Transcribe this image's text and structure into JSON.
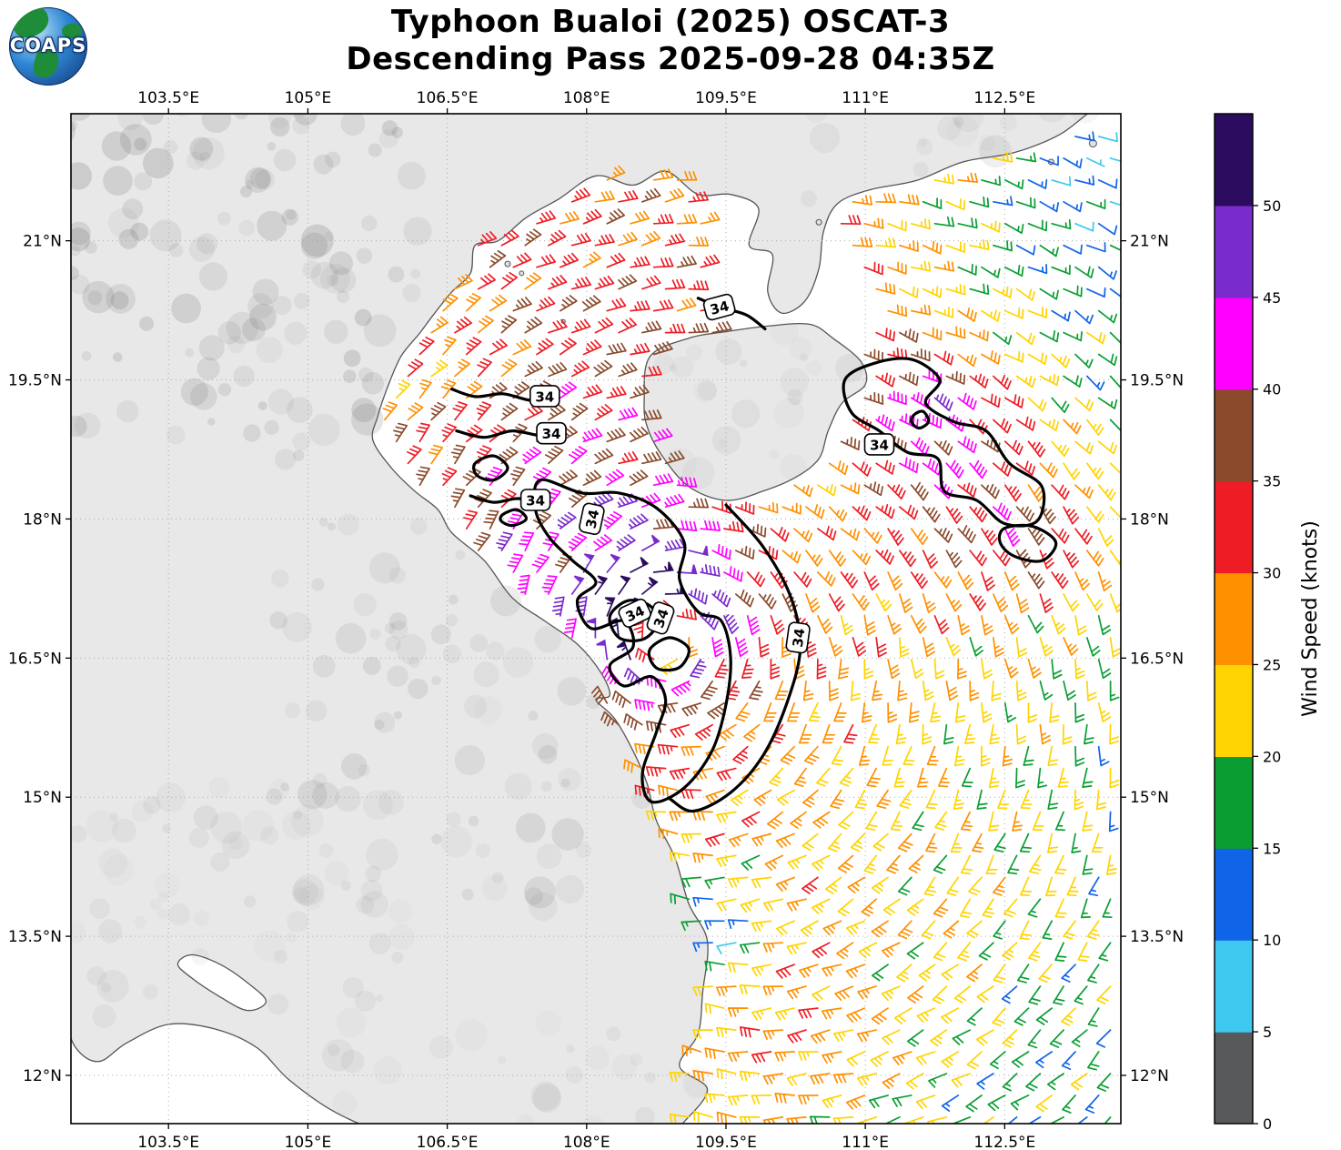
{
  "header": {
    "title_line1": "Typhoon Bualoi (2025) OSCAT-3",
    "title_line2": "Descending Pass 2025-09-28 04:35Z",
    "logo_text": "COAPS"
  },
  "chart_data": {
    "type": "map-windbarbs",
    "title": "Typhoon Bualoi (2025) OSCAT-3",
    "subtitle": "Descending Pass 2025-09-28 04:35Z",
    "x_axis": {
      "range": [
        102.45,
        113.75
      ],
      "ticks": [
        103.5,
        105,
        106.5,
        108,
        109.5,
        111,
        112.5
      ],
      "suffix": "°E"
    },
    "y_axis": {
      "range": [
        11.48,
        22.37
      ],
      "ticks": [
        21,
        19.5,
        18,
        16.5,
        15,
        13.5,
        12
      ],
      "suffix": "°N"
    },
    "colorbar": {
      "label": "Wind Speed (knots)",
      "ticks": [
        0,
        5,
        10,
        15,
        20,
        25,
        30,
        35,
        40,
        45,
        50
      ],
      "vmax": 55,
      "colors": [
        "#58595b",
        "#3fc8f0",
        "#1064e8",
        "#0a9e32",
        "#ffd400",
        "#ff9000",
        "#ee1c24",
        "#8b4a2b",
        "#ff00ff",
        "#7a2bcb",
        "#2c0c5e"
      ]
    },
    "wind_model": {
      "center": [
        108.85,
        16.75
      ],
      "vmax": 52,
      "rmax": 0.45,
      "decay_exp": 0.32,
      "background": [
        -5.5,
        -5.5
      ],
      "anomalies": [
        [
          109.35,
          13.55,
          -14,
          0.4
        ],
        [
          112.0,
          18.55,
          13,
          0.8
        ],
        [
          111.5,
          19.3,
          12,
          0.45
        ],
        [
          112.85,
          17.72,
          12,
          0.4
        ],
        [
          110.15,
          18.25,
          -9,
          0.6
        ],
        [
          113.55,
          21.9,
          -11,
          1.1
        ],
        [
          113.3,
          19.8,
          -5,
          1.3
        ],
        [
          110.3,
          12.2,
          7,
          1.0
        ],
        [
          111.8,
          13.8,
          5,
          1.6
        ],
        [
          106.2,
          19.6,
          -7,
          0.6
        ]
      ]
    },
    "barb_grid": {
      "lon_start": 102.55,
      "dlon": 0.252,
      "cols": 46,
      "lat_start": 11.55,
      "dlat": 0.235,
      "rows": 48,
      "eye_radius": 0.18
    },
    "swath": {
      "gap_polygon": [
        [
          109.35,
          21.45
        ],
        [
          110.2,
          21.5
        ],
        [
          111.05,
          20.5
        ],
        [
          110.95,
          19.5
        ],
        [
          110.45,
          19.05
        ],
        [
          109.9,
          19.35
        ],
        [
          109.5,
          19.9
        ],
        [
          109.25,
          20.8
        ]
      ],
      "southwest_cutoff": {
        "lon": 106.45,
        "lat": 14.2
      }
    },
    "contours": [
      {
        "closed": true,
        "pts": [
          [
            107.5,
            18.42
          ],
          [
            107.95,
            18.28
          ],
          [
            108.35,
            18.28
          ],
          [
            108.75,
            18.12
          ],
          [
            109.05,
            17.75
          ],
          [
            109.0,
            17.35
          ],
          [
            109.2,
            17.0
          ],
          [
            109.45,
            16.9
          ],
          [
            109.55,
            16.5
          ],
          [
            109.5,
            16.0
          ],
          [
            109.35,
            15.5
          ],
          [
            109.05,
            15.1
          ],
          [
            108.7,
            14.95
          ],
          [
            108.6,
            15.25
          ],
          [
            108.75,
            15.7
          ],
          [
            108.85,
            16.05
          ],
          [
            108.7,
            16.3
          ],
          [
            108.4,
            16.2
          ],
          [
            108.25,
            16.42
          ],
          [
            108.5,
            16.62
          ],
          [
            108.4,
            16.9
          ],
          [
            108.05,
            16.82
          ],
          [
            107.9,
            17.12
          ],
          [
            108.1,
            17.32
          ],
          [
            107.85,
            17.55
          ],
          [
            107.6,
            17.8
          ],
          [
            107.45,
            18.1
          ]
        ]
      },
      {
        "closed": false,
        "pts": [
          [
            109.5,
            18.15
          ],
          [
            109.9,
            17.7
          ],
          [
            110.2,
            17.15
          ],
          [
            110.3,
            16.6
          ],
          [
            110.15,
            16.0
          ],
          [
            109.9,
            15.45
          ],
          [
            109.55,
            15.05
          ],
          [
            109.15,
            14.85
          ],
          [
            108.9,
            14.98
          ]
        ]
      },
      {
        "closed": true,
        "pts": [
          [
            108.25,
            16.95
          ],
          [
            108.45,
            17.12
          ],
          [
            108.7,
            17.05
          ],
          [
            108.75,
            16.85
          ],
          [
            108.6,
            16.7
          ],
          [
            108.35,
            16.72
          ]
        ]
      },
      {
        "closed": true,
        "pts": [
          [
            108.7,
            16.62
          ],
          [
            108.9,
            16.72
          ],
          [
            109.1,
            16.6
          ],
          [
            109.0,
            16.4
          ],
          [
            108.78,
            16.38
          ],
          [
            108.68,
            16.5
          ]
        ]
      },
      {
        "closed": false,
        "pts": [
          [
            106.55,
            19.4
          ],
          [
            106.8,
            19.32
          ],
          [
            107.1,
            19.35
          ],
          [
            107.4,
            19.28
          ],
          [
            107.62,
            19.33
          ]
        ]
      },
      {
        "closed": false,
        "pts": [
          [
            106.6,
            18.95
          ],
          [
            106.9,
            18.88
          ],
          [
            107.2,
            18.95
          ],
          [
            107.5,
            18.9
          ],
          [
            107.7,
            18.93
          ]
        ]
      },
      {
        "closed": true,
        "pts": [
          [
            106.8,
            18.6
          ],
          [
            107.0,
            18.68
          ],
          [
            107.15,
            18.55
          ],
          [
            107.0,
            18.42
          ],
          [
            106.82,
            18.47
          ]
        ]
      },
      {
        "closed": false,
        "pts": [
          [
            106.75,
            18.25
          ],
          [
            107.0,
            18.18
          ],
          [
            107.25,
            18.22
          ],
          [
            107.5,
            18.19
          ]
        ]
      },
      {
        "closed": true,
        "pts": [
          [
            107.1,
            18.05
          ],
          [
            107.25,
            18.1
          ],
          [
            107.35,
            18.0
          ],
          [
            107.2,
            17.93
          ],
          [
            107.08,
            17.98
          ]
        ]
      },
      {
        "closed": true,
        "pts": [
          [
            110.78,
            19.5
          ],
          [
            111.1,
            19.68
          ],
          [
            111.5,
            19.72
          ],
          [
            111.8,
            19.5
          ],
          [
            111.65,
            19.25
          ],
          [
            111.95,
            19.05
          ],
          [
            112.3,
            18.95
          ],
          [
            112.55,
            18.6
          ],
          [
            112.9,
            18.35
          ],
          [
            112.85,
            17.98
          ],
          [
            112.5,
            17.95
          ],
          [
            112.2,
            18.2
          ],
          [
            111.85,
            18.3
          ],
          [
            111.78,
            18.65
          ],
          [
            111.45,
            18.72
          ],
          [
            111.15,
            18.95
          ],
          [
            110.85,
            19.15
          ]
        ]
      },
      {
        "closed": true,
        "pts": [
          [
            111.52,
            19.12
          ],
          [
            111.62,
            19.16
          ],
          [
            111.68,
            19.05
          ],
          [
            111.58,
            18.98
          ],
          [
            111.5,
            19.04
          ]
        ]
      },
      {
        "closed": true,
        "pts": [
          [
            112.5,
            17.9
          ],
          [
            112.8,
            17.92
          ],
          [
            113.05,
            17.75
          ],
          [
            112.9,
            17.55
          ],
          [
            112.6,
            17.6
          ],
          [
            112.45,
            17.75
          ]
        ]
      },
      {
        "closed": false,
        "pts": [
          [
            109.2,
            20.38
          ],
          [
            109.45,
            20.28
          ],
          [
            109.72,
            20.2
          ],
          [
            109.92,
            20.05
          ]
        ]
      }
    ],
    "contour_labels": [
      {
        "text": "34",
        "lon": 109.43,
        "lat": 20.28,
        "rot": -15
      },
      {
        "text": "34",
        "lon": 107.55,
        "lat": 19.32,
        "rot": 0
      },
      {
        "text": "34",
        "lon": 107.62,
        "lat": 18.92,
        "rot": 0
      },
      {
        "text": "34",
        "lon": 107.45,
        "lat": 18.2,
        "rot": 0
      },
      {
        "text": "34",
        "lon": 108.06,
        "lat": 18.0,
        "rot": -78
      },
      {
        "text": "34",
        "lon": 108.52,
        "lat": 16.98,
        "rot": -25
      },
      {
        "text": "34",
        "lon": 108.8,
        "lat": 16.93,
        "rot": -70
      },
      {
        "text": "34",
        "lon": 110.28,
        "lat": 16.72,
        "rot": -82
      },
      {
        "text": "34",
        "lon": 111.15,
        "lat": 18.8,
        "rot": 0
      }
    ],
    "geo": {
      "mainland": [
        [
          101.8,
          23.2
        ],
        [
          114.4,
          23.2
        ],
        [
          114.4,
          22.75
        ],
        [
          113.6,
          22.5
        ],
        [
          113.1,
          22.15
        ],
        [
          112.6,
          21.95
        ],
        [
          112.05,
          21.85
        ],
        [
          111.55,
          21.65
        ],
        [
          111.05,
          21.55
        ],
        [
          110.7,
          21.4
        ],
        [
          110.55,
          21.1
        ],
        [
          110.5,
          20.7
        ],
        [
          110.35,
          20.35
        ],
        [
          110.1,
          20.22
        ],
        [
          109.95,
          20.45
        ],
        [
          110.0,
          20.85
        ],
        [
          109.75,
          20.95
        ],
        [
          109.85,
          21.35
        ],
        [
          109.55,
          21.5
        ],
        [
          109.2,
          21.5
        ],
        [
          108.85,
          21.75
        ],
        [
          108.5,
          21.6
        ],
        [
          108.1,
          21.7
        ],
        [
          107.7,
          21.45
        ],
        [
          107.35,
          21.25
        ],
        [
          107.05,
          21.0
        ],
        [
          106.8,
          20.95
        ],
        [
          106.75,
          20.65
        ],
        [
          106.55,
          20.45
        ],
        [
          106.35,
          20.2
        ],
        [
          106.2,
          20.0
        ],
        [
          106.0,
          19.75
        ],
        [
          105.85,
          19.4
        ],
        [
          105.75,
          19.1
        ],
        [
          105.7,
          18.85
        ],
        [
          105.9,
          18.55
        ],
        [
          106.15,
          18.3
        ],
        [
          106.4,
          18.1
        ],
        [
          106.55,
          17.85
        ],
        [
          106.9,
          17.55
        ],
        [
          107.2,
          17.15
        ],
        [
          107.55,
          16.9
        ],
        [
          107.9,
          16.65
        ],
        [
          108.15,
          16.35
        ],
        [
          108.25,
          16.1
        ],
        [
          108.1,
          16.05
        ],
        [
          108.3,
          15.85
        ],
        [
          108.5,
          15.5
        ],
        [
          108.65,
          15.15
        ],
        [
          108.75,
          14.75
        ],
        [
          108.95,
          14.35
        ],
        [
          109.1,
          13.85
        ],
        [
          109.3,
          13.45
        ],
        [
          109.25,
          12.9
        ],
        [
          109.2,
          12.45
        ],
        [
          109.0,
          12.1
        ],
        [
          109.3,
          11.85
        ],
        [
          109.05,
          11.5
        ],
        [
          108.8,
          11.3
        ],
        [
          108.2,
          11.1
        ],
        [
          107.2,
          11.1
        ],
        [
          106.5,
          11.2
        ],
        [
          105.9,
          11.35
        ],
        [
          105.3,
          11.6
        ],
        [
          104.8,
          11.95
        ],
        [
          104.45,
          12.3
        ],
        [
          104.0,
          12.5
        ],
        [
          103.5,
          12.55
        ],
        [
          103.05,
          12.35
        ],
        [
          102.75,
          12.15
        ],
        [
          102.5,
          12.3
        ],
        [
          102.35,
          12.7
        ],
        [
          102.2,
          12.95
        ],
        [
          101.8,
          13.1
        ]
      ],
      "hainan": [
        [
          108.62,
          19.28
        ],
        [
          108.68,
          19.75
        ],
        [
          109.1,
          19.95
        ],
        [
          109.5,
          20.02
        ],
        [
          109.95,
          20.08
        ],
        [
          110.4,
          20.1
        ],
        [
          110.65,
          19.95
        ],
        [
          110.95,
          19.7
        ],
        [
          111.0,
          19.45
        ],
        [
          110.75,
          19.25
        ],
        [
          110.6,
          18.95
        ],
        [
          110.5,
          18.65
        ],
        [
          110.25,
          18.45
        ],
        [
          109.9,
          18.3
        ],
        [
          109.5,
          18.2
        ],
        [
          109.1,
          18.35
        ],
        [
          108.8,
          18.7
        ],
        [
          108.65,
          19.0
        ]
      ],
      "lake": [
        [
          103.75,
          13.3
        ],
        [
          104.05,
          13.2
        ],
        [
          104.35,
          13.0
        ],
        [
          104.55,
          12.8
        ],
        [
          104.35,
          12.7
        ],
        [
          104.05,
          12.85
        ],
        [
          103.75,
          13.05
        ],
        [
          103.6,
          13.2
        ]
      ],
      "islands": [
        [
          107.15,
          20.75,
          3
        ],
        [
          107.3,
          20.65,
          2.5
        ],
        [
          113.45,
          22.05,
          4
        ],
        [
          113.0,
          21.85,
          3
        ],
        [
          110.5,
          21.2,
          3
        ],
        [
          107.75,
          20.13,
          2
        ]
      ]
    },
    "terrain_regions": [
      [
        102.0,
        18.8,
        106.2,
        22.9,
        150,
        0.24
      ],
      [
        104.6,
        13.8,
        108.6,
        19.0,
        110,
        0.16
      ],
      [
        102.0,
        12.6,
        106.2,
        15.2,
        70,
        0.1
      ],
      [
        110.2,
        21.2,
        114.2,
        22.9,
        50,
        0.12
      ],
      [
        108.6,
        18.3,
        111.0,
        20.2,
        35,
        0.1
      ],
      [
        105.2,
        10.9,
        109.3,
        12.6,
        40,
        0.1
      ]
    ]
  }
}
